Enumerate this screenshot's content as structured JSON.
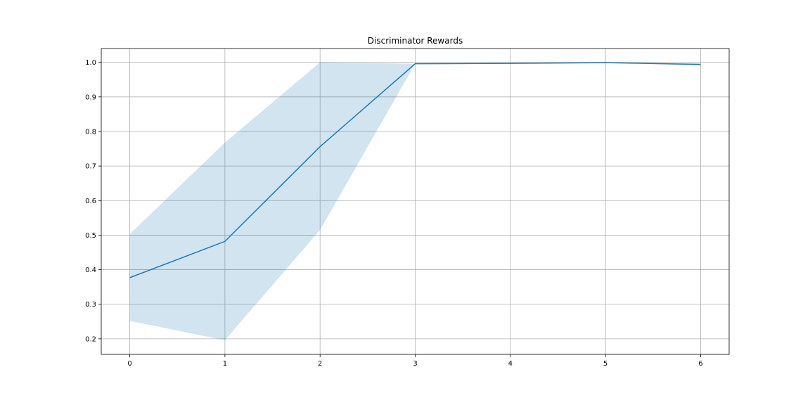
{
  "chart_data": {
    "type": "line",
    "title": "Discriminator Rewards",
    "xlabel": "",
    "ylabel": "",
    "x": [
      0,
      1,
      2,
      3,
      4,
      5,
      6
    ],
    "series": [
      {
        "values": [
          0.377,
          0.482,
          0.756,
          0.996,
          0.997,
          0.999,
          0.994
        ],
        "lower": [
          0.252,
          0.196,
          0.515,
          0.996,
          0.997,
          0.999,
          0.991
        ],
        "upper": [
          0.503,
          0.768,
          1.0,
          0.996,
          0.997,
          0.999,
          0.997
        ]
      }
    ],
    "xlim": [
      -0.3,
      6.3
    ],
    "ylim": [
      0.155,
      1.04
    ],
    "xticks": [
      0,
      1,
      2,
      3,
      4,
      5,
      6
    ],
    "yticks": [
      0.2,
      0.3,
      0.4,
      0.5,
      0.6,
      0.7,
      0.8,
      0.9,
      1.0
    ],
    "xtick_labels": [
      "0",
      "1",
      "2",
      "3",
      "4",
      "5",
      "6"
    ],
    "ytick_labels": [
      "0.2",
      "0.3",
      "0.4",
      "0.5",
      "0.6",
      "0.7",
      "0.8",
      "0.9",
      "1.0"
    ],
    "grid": true,
    "line_color": "#1f77b4",
    "band_color": "#1f77b4"
  }
}
